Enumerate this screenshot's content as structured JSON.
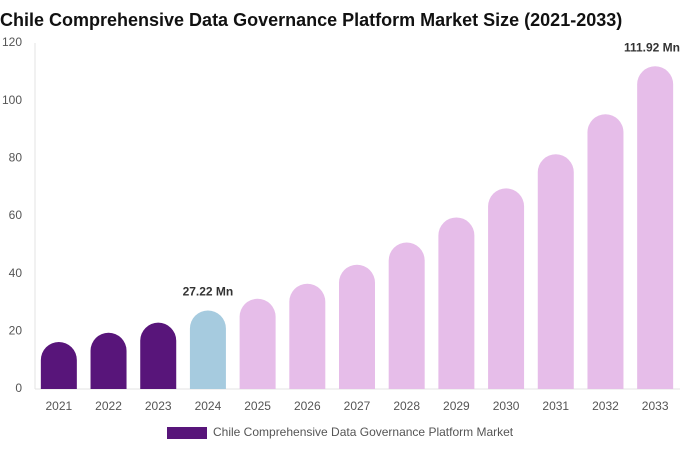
{
  "chart_data": {
    "type": "bar",
    "title": "Chile Comprehensive Data Governance Platform Market Size (2021-2033)",
    "categories": [
      "2021",
      "2022",
      "2023",
      "2024",
      "2025",
      "2026",
      "2027",
      "2028",
      "2029",
      "2030",
      "2031",
      "2032",
      "2033"
    ],
    "series": [
      {
        "name": "Chile Comprehensive Data Governance Platform Market",
        "color": "#58157a",
        "values": [
          16.3,
          19.5,
          23,
          27.22,
          31.3,
          36.5,
          43.1,
          50.8,
          59.5,
          69.6,
          81.4,
          95.3,
          111.92
        ],
        "colors": [
          "#58157a",
          "#58157a",
          "#58157a",
          "#a6cbdf",
          "#e6bde9",
          "#e6bde9",
          "#e6bde9",
          "#e6bde9",
          "#e6bde9",
          "#e6bde9",
          "#e6bde9",
          "#e6bde9",
          "#e6bde9"
        ],
        "value_labels": [
          null,
          null,
          null,
          "27.22 Mn",
          null,
          null,
          null,
          null,
          null,
          null,
          null,
          null,
          "111.92 Mn"
        ]
      }
    ],
    "ylim": [
      0,
      120
    ],
    "yticks": [
      0,
      20,
      40,
      60,
      80,
      100,
      120
    ],
    "grid": false
  }
}
